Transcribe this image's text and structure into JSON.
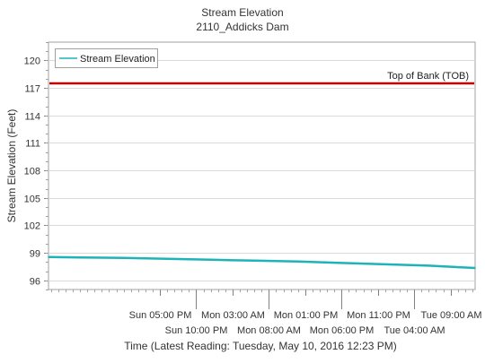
{
  "chart_data": {
    "type": "line",
    "title": "Stream Elevation",
    "subtitle": "2110_Addicks Dam",
    "xlabel": "Time (Latest Reading: Tuesday, May 10, 2016 12:23 PM)",
    "ylabel": "Stream Elevation (Feet)",
    "ylim": [
      95,
      122
    ],
    "yticks": [
      96,
      99,
      102,
      105,
      108,
      111,
      114,
      117,
      120
    ],
    "xrange": [
      "2016-05-08T01:40",
      "2016-05-10T12:23"
    ],
    "x_ticks_top_row": [
      "Sun 05:00 PM",
      "Mon 03:00 AM",
      "Mon 01:00 PM",
      "Mon 11:00 PM",
      "Tue 09:00 AM"
    ],
    "x_ticks_bottom_row": [
      "Sun 10:00 PM",
      "Mon 08:00 AM",
      "Mon 06:00 PM",
      "Tue 04:00 AM"
    ],
    "x_ticks": [
      "2016-05-08T17:00",
      "2016-05-08T22:00",
      "2016-05-09T03:00",
      "2016-05-09T08:00",
      "2016-05-09T13:00",
      "2016-05-09T18:00",
      "2016-05-09T23:00",
      "2016-05-10T04:00",
      "2016-05-10T09:00"
    ],
    "grid": "horizontal",
    "legend_position": "top-left",
    "series": [
      {
        "name": "Stream Elevation",
        "color": "#1fb3b8",
        "x": [
          "2016-05-08T01:40",
          "2016-05-08T06:00",
          "2016-05-08T12:00",
          "2016-05-08T18:00",
          "2016-05-09T00:00",
          "2016-05-09T06:00",
          "2016-05-09T12:00",
          "2016-05-09T18:00",
          "2016-05-10T00:00",
          "2016-05-10T06:00",
          "2016-05-10T12:23"
        ],
        "values": [
          98.55,
          98.5,
          98.45,
          98.35,
          98.25,
          98.15,
          98.05,
          97.9,
          97.75,
          97.6,
          97.35
        ]
      }
    ],
    "reference_lines": [
      {
        "label": "Top of Bank (TOB)",
        "value": 117.5,
        "color": "#c00000"
      }
    ]
  }
}
